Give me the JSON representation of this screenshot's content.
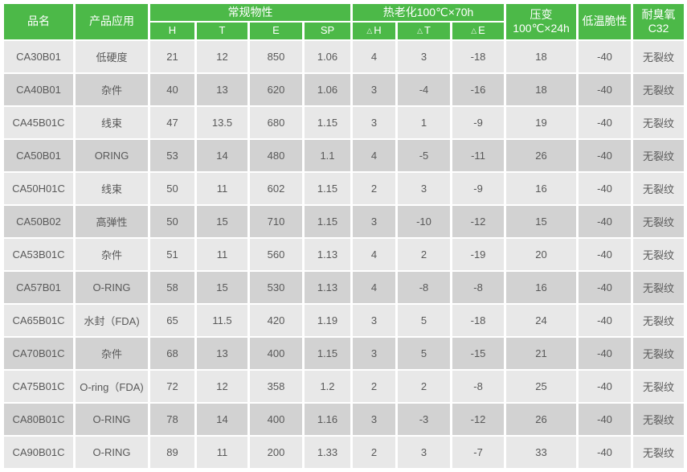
{
  "table": {
    "header": {
      "col_product_name": "品名",
      "col_application": "产品应用",
      "group_physical": "常规物性",
      "physical_subcols": [
        "H",
        "T",
        "E",
        "SP"
      ],
      "group_heat_aging": "热老化100℃×70h",
      "heat_subcols": [
        {
          "delta": "△",
          "label": "H"
        },
        {
          "delta": "△",
          "label": "T"
        },
        {
          "delta": "△",
          "label": "E"
        }
      ],
      "col_compression_line1": "压变",
      "col_compression_line2": "100℃×24h",
      "col_low_temp": "低温脆性",
      "col_ozone_line1": "耐臭氧",
      "col_ozone_line2": "C32"
    },
    "rows": [
      [
        "CA30B01",
        "低硬度",
        "21",
        "12",
        "850",
        "1.06",
        "4",
        "3",
        "-18",
        "18",
        "-40",
        "无裂纹"
      ],
      [
        "CA40B01",
        "杂件",
        "40",
        "13",
        "620",
        "1.06",
        "3",
        "-4",
        "-16",
        "18",
        "-40",
        "无裂纹"
      ],
      [
        "CA45B01C",
        "线束",
        "47",
        "13.5",
        "680",
        "1.15",
        "3",
        "1",
        "-9",
        "19",
        "-40",
        "无裂纹"
      ],
      [
        "CA50B01",
        "ORING",
        "53",
        "14",
        "480",
        "1.1",
        "4",
        "-5",
        "-11",
        "26",
        "-40",
        "无裂纹"
      ],
      [
        "CA50H01C",
        "线束",
        "50",
        "11",
        "602",
        "1.15",
        "2",
        "3",
        "-9",
        "16",
        "-40",
        "无裂纹"
      ],
      [
        "CA50B02",
        "高弹性",
        "50",
        "15",
        "710",
        "1.15",
        "3",
        "-10",
        "-12",
        "15",
        "-40",
        "无裂纹"
      ],
      [
        "CA53B01C",
        "杂件",
        "51",
        "11",
        "560",
        "1.13",
        "4",
        "2",
        "-19",
        "20",
        "-40",
        "无裂纹"
      ],
      [
        "CA57B01",
        "O-RING",
        "58",
        "15",
        "530",
        "1.13",
        "4",
        "-8",
        "-8",
        "16",
        "-40",
        "无裂纹"
      ],
      [
        "CA65B01C",
        "水封（FDA)",
        "65",
        "11.5",
        "420",
        "1.19",
        "3",
        "5",
        "-18",
        "24",
        "-40",
        "无裂纹"
      ],
      [
        "CA70B01C",
        "杂件",
        "68",
        "13",
        "400",
        "1.15",
        "3",
        "5",
        "-15",
        "21",
        "-40",
        "无裂纹"
      ],
      [
        "CA75B01C",
        "O-ring（FDA)",
        "72",
        "12",
        "358",
        "1.2",
        "2",
        "2",
        "-8",
        "25",
        "-40",
        "无裂纹"
      ],
      [
        "CA80B01C",
        "O-RING",
        "78",
        "14",
        "400",
        "1.16",
        "3",
        "-3",
        "-12",
        "26",
        "-40",
        "无裂纹"
      ],
      [
        "CA90B01C",
        "O-RING",
        "89",
        "11",
        "200",
        "1.33",
        "2",
        "3",
        "-7",
        "33",
        "-40",
        "无裂纹"
      ]
    ]
  },
  "colors": {
    "header_green": "#4cb948",
    "header_text": "#ffffff",
    "row_light": "#e8e8e8",
    "row_dark": "#d2d2d2",
    "body_text": "#595959"
  }
}
